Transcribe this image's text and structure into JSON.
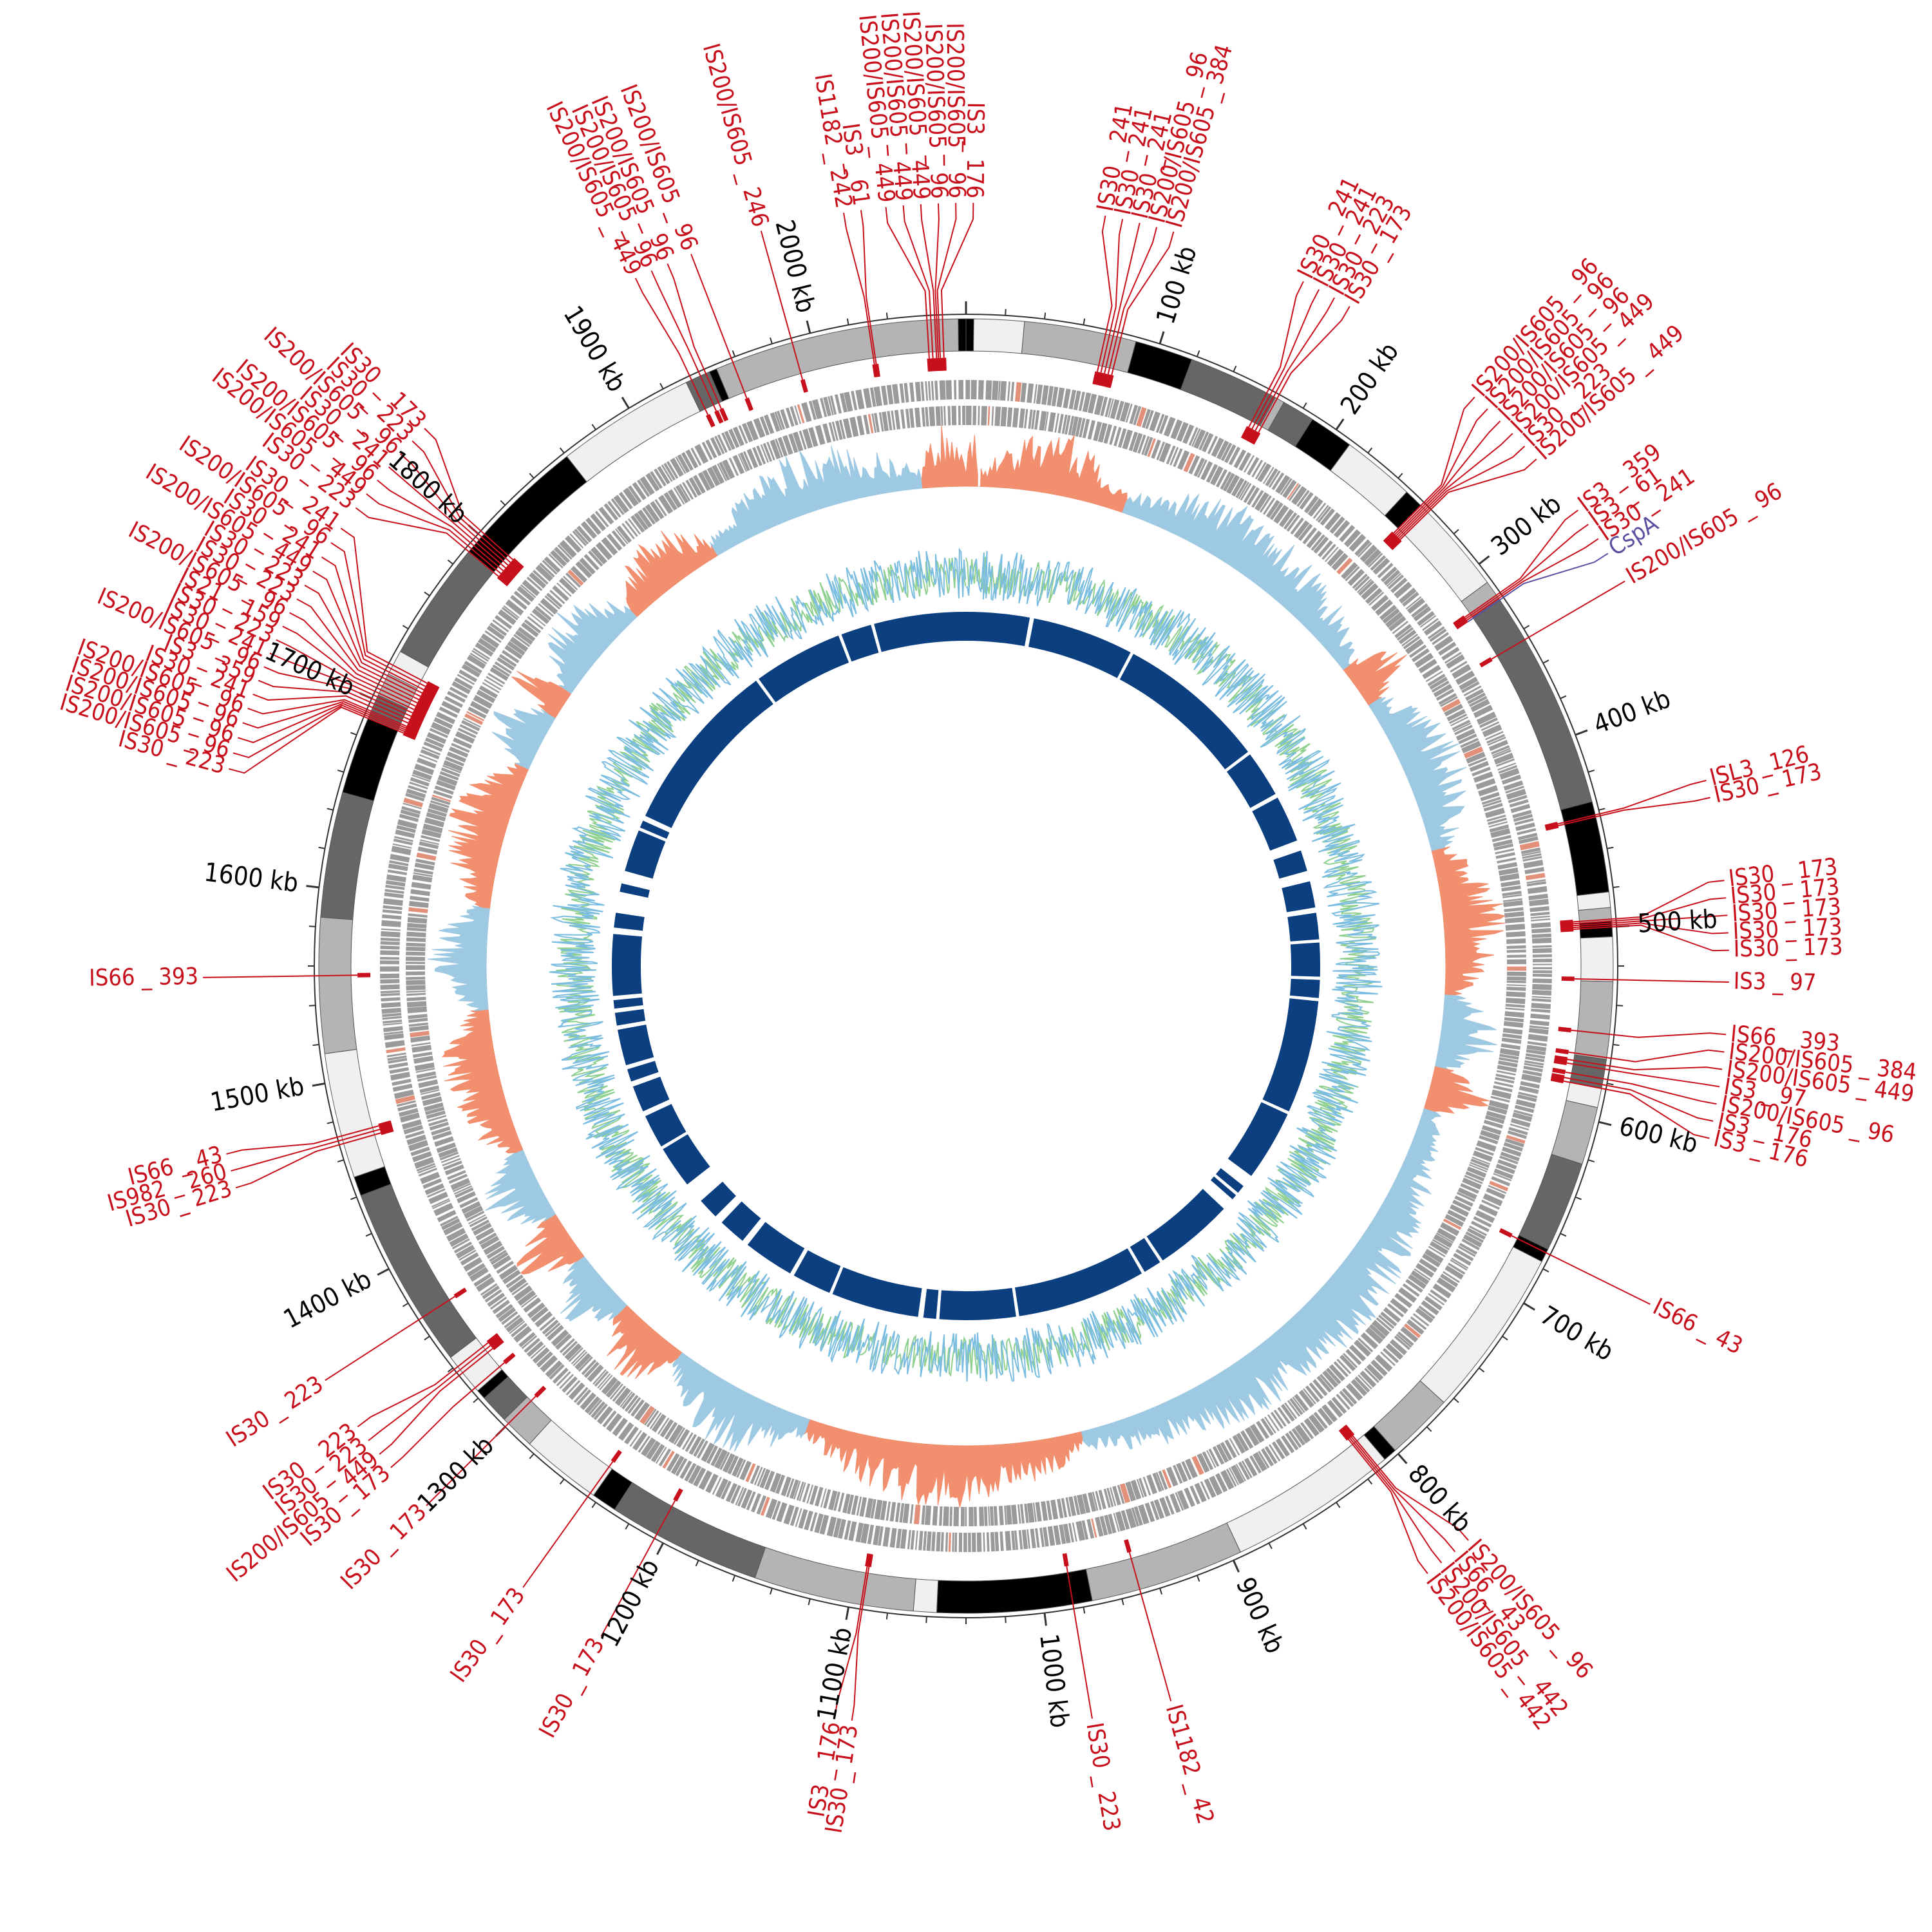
{
  "genome_length_kb": 2080,
  "colors": {
    "is_element": "#c8101c",
    "gene_highlight": "#5a4fa0",
    "gc_skew_positive": "#9ec9e3",
    "gc_skew_negative": "#f28f6f",
    "gc_content_a": "#7bbde0",
    "gc_content_b": "#8fd08f",
    "inner_blocks": "#0b3f7f",
    "cds_track": "#9a9a9a",
    "contig_palette": [
      "#000000",
      "#666666",
      "#b4b4b4",
      "#f0f0f0"
    ]
  },
  "scale_ticks": [
    {
      "kb": 0,
      "label": ""
    },
    {
      "kb": 100,
      "label": "100 kb"
    },
    {
      "kb": 200,
      "label": "200 kb"
    },
    {
      "kb": 300,
      "label": "300 kb"
    },
    {
      "kb": 400,
      "label": "400 kb"
    },
    {
      "kb": 500,
      "label": "500 kb"
    },
    {
      "kb": 600,
      "label": "600 kb"
    },
    {
      "kb": 700,
      "label": "700 kb"
    },
    {
      "kb": 800,
      "label": "800 kb"
    },
    {
      "kb": 900,
      "label": "900 kb"
    },
    {
      "kb": 1000,
      "label": "1000 kb"
    },
    {
      "kb": 1100,
      "label": "1100 kb"
    },
    {
      "kb": 1200,
      "label": "1200 kb"
    },
    {
      "kb": 1300,
      "label": "1300 kb"
    },
    {
      "kb": 1400,
      "label": "1400 kb"
    },
    {
      "kb": 1500,
      "label": "1500 kb"
    },
    {
      "kb": 1600,
      "label": "1600 kb"
    },
    {
      "kb": 1700,
      "label": "1700 kb"
    },
    {
      "kb": 1800,
      "label": "1800 kb"
    },
    {
      "kb": 1900,
      "label": "1900 kb"
    },
    {
      "kb": 2000,
      "label": "2000 kb"
    }
  ],
  "contigs": [
    {
      "start": 0,
      "end": 4,
      "shade": 0
    },
    {
      "start": 4,
      "end": 30,
      "shade": 3
    },
    {
      "start": 30,
      "end": 88,
      "shade": 2
    },
    {
      "start": 88,
      "end": 118,
      "shade": 0
    },
    {
      "start": 118,
      "end": 165,
      "shade": 1
    },
    {
      "start": 165,
      "end": 170,
      "shade": 2
    },
    {
      "start": 170,
      "end": 187,
      "shade": 1
    },
    {
      "start": 187,
      "end": 210,
      "shade": 0
    },
    {
      "start": 210,
      "end": 248,
      "shade": 3
    },
    {
      "start": 248,
      "end": 258,
      "shade": 0
    },
    {
      "start": 258,
      "end": 310,
      "shade": 3
    },
    {
      "start": 310,
      "end": 320,
      "shade": 2
    },
    {
      "start": 320,
      "end": 435,
      "shade": 1
    },
    {
      "start": 435,
      "end": 482,
      "shade": 0
    },
    {
      "start": 482,
      "end": 490,
      "shade": 3
    },
    {
      "start": 490,
      "end": 497,
      "shade": 2
    },
    {
      "start": 497,
      "end": 505,
      "shade": 0
    },
    {
      "start": 505,
      "end": 528,
      "shade": 3
    },
    {
      "start": 528,
      "end": 568,
      "shade": 2
    },
    {
      "start": 568,
      "end": 583,
      "shade": 1
    },
    {
      "start": 583,
      "end": 593,
      "shade": 3
    },
    {
      "start": 593,
      "end": 623,
      "shade": 2
    },
    {
      "start": 623,
      "end": 670,
      "shade": 1
    },
    {
      "start": 670,
      "end": 677,
      "shade": 0
    },
    {
      "start": 677,
      "end": 765,
      "shade": 3
    },
    {
      "start": 765,
      "end": 800,
      "shade": 2
    },
    {
      "start": 800,
      "end": 807,
      "shade": 0
    },
    {
      "start": 807,
      "end": 895,
      "shade": 3
    },
    {
      "start": 895,
      "end": 975,
      "shade": 2
    },
    {
      "start": 975,
      "end": 1055,
      "shade": 0
    },
    {
      "start": 1055,
      "end": 1067,
      "shade": 3
    },
    {
      "start": 1067,
      "end": 1150,
      "shade": 2
    },
    {
      "start": 1150,
      "end": 1230,
      "shade": 1
    },
    {
      "start": 1230,
      "end": 1243,
      "shade": 0
    },
    {
      "start": 1243,
      "end": 1285,
      "shade": 3
    },
    {
      "start": 1285,
      "end": 1303,
      "shade": 2
    },
    {
      "start": 1303,
      "end": 1318,
      "shade": 1
    },
    {
      "start": 1318,
      "end": 1323,
      "shade": 0
    },
    {
      "start": 1323,
      "end": 1345,
      "shade": 3
    },
    {
      "start": 1345,
      "end": 1440,
      "shade": 1
    },
    {
      "start": 1440,
      "end": 1450,
      "shade": 0
    },
    {
      "start": 1450,
      "end": 1515,
      "shade": 3
    },
    {
      "start": 1515,
      "end": 1585,
      "shade": 2
    },
    {
      "start": 1585,
      "end": 1650,
      "shade": 1
    },
    {
      "start": 1650,
      "end": 1690,
      "shade": 0
    },
    {
      "start": 1690,
      "end": 1703,
      "shade": 1
    },
    {
      "start": 1703,
      "end": 1715,
      "shade": 2
    },
    {
      "start": 1715,
      "end": 1728,
      "shade": 3
    },
    {
      "start": 1728,
      "end": 1790,
      "shade": 1
    },
    {
      "start": 1790,
      "end": 1860,
      "shade": 0
    },
    {
      "start": 1860,
      "end": 1932,
      "shade": 3
    },
    {
      "start": 1932,
      "end": 1945,
      "shade": 1
    },
    {
      "start": 1945,
      "end": 1949,
      "shade": 0
    },
    {
      "start": 1949,
      "end": 2076,
      "shade": 2
    },
    {
      "start": 2076,
      "end": 2080,
      "shade": 0
    }
  ],
  "inner_blocks": [
    {
      "start": 0,
      "end": 60
    },
    {
      "start": 64,
      "end": 160
    },
    {
      "start": 163,
      "end": 305
    },
    {
      "start": 308,
      "end": 352
    },
    {
      "start": 356,
      "end": 400
    },
    {
      "start": 410,
      "end": 430
    },
    {
      "start": 440,
      "end": 465
    },
    {
      "start": 470,
      "end": 495
    },
    {
      "start": 498,
      "end": 530
    },
    {
      "start": 533,
      "end": 550
    },
    {
      "start": 553,
      "end": 660
    },
    {
      "start": 663,
      "end": 730
    },
    {
      "start": 742,
      "end": 750
    },
    {
      "start": 753,
      "end": 758
    },
    {
      "start": 770,
      "end": 845
    },
    {
      "start": 848,
      "end": 865
    },
    {
      "start": 868,
      "end": 990
    },
    {
      "start": 993,
      "end": 1065
    },
    {
      "start": 1068,
      "end": 1080
    },
    {
      "start": 1085,
      "end": 1168
    },
    {
      "start": 1171,
      "end": 1208
    },
    {
      "start": 1212,
      "end": 1260
    },
    {
      "start": 1266,
      "end": 1292
    },
    {
      "start": 1300,
      "end": 1320
    },
    {
      "start": 1340,
      "end": 1380
    },
    {
      "start": 1383,
      "end": 1415
    },
    {
      "start": 1420,
      "end": 1445
    },
    {
      "start": 1450,
      "end": 1462
    },
    {
      "start": 1466,
      "end": 1500
    },
    {
      "start": 1504,
      "end": 1516
    },
    {
      "start": 1520,
      "end": 1528
    },
    {
      "start": 1532,
      "end": 1590
    },
    {
      "start": 1596,
      "end": 1610
    },
    {
      "start": 1630,
      "end": 1638
    },
    {
      "start": 1650,
      "end": 1690
    },
    {
      "start": 1693,
      "end": 1700
    },
    {
      "start": 1705,
      "end": 1870
    },
    {
      "start": 1873,
      "end": 1958
    },
    {
      "start": 1961,
      "end": 1990
    },
    {
      "start": 1993,
      "end": 2080
    }
  ],
  "skew_segments": [
    {
      "start": 0,
      "end": 8,
      "sign": "neg"
    },
    {
      "start": 10,
      "end": 110,
      "sign": "neg"
    },
    {
      "start": 110,
      "end": 300,
      "sign": "pos"
    },
    {
      "start": 300,
      "end": 330,
      "sign": "neg"
    },
    {
      "start": 330,
      "end": 440,
      "sign": "pos"
    },
    {
      "start": 440,
      "end": 540,
      "sign": "neg"
    },
    {
      "start": 540,
      "end": 590,
      "sign": "pos"
    },
    {
      "start": 590,
      "end": 620,
      "sign": "neg"
    },
    {
      "start": 620,
      "end": 960,
      "sign": "pos"
    },
    {
      "start": 960,
      "end": 1150,
      "sign": "neg"
    },
    {
      "start": 1150,
      "end": 1250,
      "sign": "pos"
    },
    {
      "start": 1250,
      "end": 1300,
      "sign": "neg"
    },
    {
      "start": 1300,
      "end": 1345,
      "sign": "pos"
    },
    {
      "start": 1345,
      "end": 1380,
      "sign": "neg"
    },
    {
      "start": 1380,
      "end": 1430,
      "sign": "pos"
    },
    {
      "start": 1430,
      "end": 1530,
      "sign": "neg"
    },
    {
      "start": 1530,
      "end": 1600,
      "sign": "pos"
    },
    {
      "start": 1600,
      "end": 1700,
      "sign": "neg"
    },
    {
      "start": 1700,
      "end": 1740,
      "sign": "pos"
    },
    {
      "start": 1740,
      "end": 1760,
      "sign": "neg"
    },
    {
      "start": 1760,
      "end": 1830,
      "sign": "pos"
    },
    {
      "start": 1830,
      "end": 1900,
      "sign": "neg"
    },
    {
      "start": 1900,
      "end": 2050,
      "sign": "pos"
    },
    {
      "start": 2050,
      "end": 2080,
      "sign": "neg"
    }
  ],
  "annotations": [
    {
      "text": "IS30 _ 241",
      "pos": 160,
      "side": "right"
    },
    {
      "text": "IS30 _ 241",
      "pos": 162,
      "side": "right"
    },
    {
      "text": "IS30 _ 223",
      "pos": 164,
      "side": "right"
    },
    {
      "text": "IS30 _ 173",
      "pos": 166,
      "side": "right"
    },
    {
      "text": "IS200/IS605 _ 96",
      "pos": 258,
      "side": "right"
    },
    {
      "text": "IS200/IS605 _ 96",
      "pos": 259,
      "side": "right"
    },
    {
      "text": "IS200/IS605 _ 96",
      "pos": 260,
      "side": "right"
    },
    {
      "text": "IS200/IS605 _ 449",
      "pos": 261,
      "side": "right"
    },
    {
      "text": "IS30 _ 223",
      "pos": 262,
      "side": "right"
    },
    {
      "text": "IS200/IS605 _ 449",
      "pos": 263,
      "side": "right"
    },
    {
      "text": "IS3 _ 359",
      "pos": 318,
      "side": "right"
    },
    {
      "text": "IS3 _ 61",
      "pos": 319,
      "side": "right"
    },
    {
      "text": "IS30 _ 241",
      "pos": 320,
      "side": "right"
    },
    {
      "text": "CspA",
      "pos": 321,
      "side": "right",
      "kind": "gene"
    },
    {
      "text": "IS200/IS605 _ 96",
      "pos": 345,
      "side": "right"
    },
    {
      "text": "ISL3 _126",
      "pos": 442,
      "side": "right"
    },
    {
      "text": "IS30 _ 173",
      "pos": 443,
      "side": "right"
    },
    {
      "text": "IS30 _ 173",
      "pos": 496,
      "side": "right"
    },
    {
      "text": "IS30 _ 173",
      "pos": 497,
      "side": "right"
    },
    {
      "text": "IS30 _ 173",
      "pos": 498,
      "side": "right"
    },
    {
      "text": "IS30 _ 173",
      "pos": 499,
      "side": "right"
    },
    {
      "text": "IS30 _ 173",
      "pos": 500,
      "side": "right"
    },
    {
      "text": "IS3 _ 97",
      "pos": 527,
      "side": "right"
    },
    {
      "text": "IS66 _ 393",
      "pos": 555,
      "side": "right"
    },
    {
      "text": "IS200/IS605 _ 384",
      "pos": 567,
      "side": "right"
    },
    {
      "text": "IS200/IS605 _ 449",
      "pos": 571,
      "side": "right"
    },
    {
      "text": "IS3 _ 97",
      "pos": 573,
      "side": "right"
    },
    {
      "text": "IS200/IS605 _ 96",
      "pos": 578,
      "side": "right"
    },
    {
      "text": "IS3 _ 176",
      "pos": 581,
      "side": "right"
    },
    {
      "text": "IS3 _ 176",
      "pos": 583,
      "side": "right"
    },
    {
      "text": "IS66 _ 43",
      "pos": 672,
      "side": "right"
    },
    {
      "text": "IS200/IS605 _ 96",
      "pos": 812,
      "side": "right"
    },
    {
      "text": "IS66 _ 43",
      "pos": 813,
      "side": "right"
    },
    {
      "text": "IS200/IS605 _ 442",
      "pos": 814,
      "side": "right"
    },
    {
      "text": "IS200/IS605 _ 442",
      "pos": 815,
      "side": "right"
    },
    {
      "text": "IS1182 _ 42",
      "pos": 950,
      "side": "right"
    },
    {
      "text": "IS30 _ 223",
      "pos": 985,
      "side": "right"
    },
    {
      "text": "IS30 _ 173",
      "pos": 1093,
      "side": "left"
    },
    {
      "text": "IS3 _ 176",
      "pos": 1094,
      "side": "left"
    },
    {
      "text": "IS30 _ 173",
      "pos": 1205,
      "side": "left"
    },
    {
      "text": "IS30 _ 173",
      "pos": 1245,
      "side": "left"
    },
    {
      "text": "IS30 _ 173",
      "pos": 1300,
      "side": "left"
    },
    {
      "text": "IS30 _ 173",
      "pos": 1325,
      "side": "left"
    },
    {
      "text": "IS200/IS605 _ 449",
      "pos": 1335,
      "side": "left"
    },
    {
      "text": "IS30 _ 223",
      "pos": 1337,
      "side": "left"
    },
    {
      "text": "IS30 _ 223",
      "pos": 1339,
      "side": "left"
    },
    {
      "text": "IS30 _ 223",
      "pos": 1370,
      "side": "left"
    },
    {
      "text": "IS30 _ 223",
      "pos": 1468,
      "side": "left"
    },
    {
      "text": "IS982 _ 260",
      "pos": 1470,
      "side": "left"
    },
    {
      "text": "IS66 _ 43",
      "pos": 1472,
      "side": "left"
    },
    {
      "text": "IS66 _ 393",
      "pos": 1555,
      "side": "left"
    },
    {
      "text": "IS30 _ 223",
      "pos": 1690,
      "side": "left"
    },
    {
      "text": "IS200/IS605 _ 96",
      "pos": 1691,
      "side": "left"
    },
    {
      "text": "IS200/IS605 _ 96",
      "pos": 1692,
      "side": "left"
    },
    {
      "text": "IS200/IS605 _ 96",
      "pos": 1693,
      "side": "left"
    },
    {
      "text": "IS200/IS605 _ 96",
      "pos": 1694,
      "side": "left"
    },
    {
      "text": "IS30 _ 241",
      "pos": 1696,
      "side": "left"
    },
    {
      "text": "IS3 _ 359",
      "pos": 1698,
      "side": "left"
    },
    {
      "text": "IS200/IS605 _ 96",
      "pos": 1700,
      "side": "left"
    },
    {
      "text": "IS30 _ 241",
      "pos": 1702,
      "side": "left"
    },
    {
      "text": "IS30 _ 223",
      "pos": 1704,
      "side": "left"
    },
    {
      "text": "IS21 _ 159",
      "pos": 1706,
      "side": "left"
    },
    {
      "text": "IS200/IS605 _ 96",
      "pos": 1708,
      "side": "left"
    },
    {
      "text": "IS30 _ 223",
      "pos": 1710,
      "side": "left"
    },
    {
      "text": "IS30 _ 223",
      "pos": 1712,
      "side": "left"
    },
    {
      "text": "IS200/IS605 _ 449",
      "pos": 1714,
      "side": "left"
    },
    {
      "text": "IS30 _ 241",
      "pos": 1716,
      "side": "left"
    },
    {
      "text": "IS200/IS605 _ 96",
      "pos": 1718,
      "side": "left"
    },
    {
      "text": "IS30 _ 241",
      "pos": 1720,
      "side": "left"
    },
    {
      "text": "IS30 _ 223",
      "pos": 1790,
      "side": "left"
    },
    {
      "text": "IS200/IS605 _ 449",
      "pos": 1792,
      "side": "left"
    },
    {
      "text": "IS200/IS605 _ 96",
      "pos": 1794,
      "side": "left"
    },
    {
      "text": "IS30 _ 241",
      "pos": 1796,
      "side": "left"
    },
    {
      "text": "IS200/IS605 _ 96",
      "pos": 1798,
      "side": "left"
    },
    {
      "text": "IS30 _ 223",
      "pos": 1800,
      "side": "left"
    },
    {
      "text": "IS30 _ 173",
      "pos": 1802,
      "side": "left"
    },
    {
      "text": "IS200/IS605 _ 449",
      "pos": 1935,
      "side": "left"
    },
    {
      "text": "IS200/IS605 _ 96",
      "pos": 1940,
      "side": "left"
    },
    {
      "text": "IS200/IS605 _ 96",
      "pos": 1943,
      "side": "left"
    },
    {
      "text": "IS200/IS605 _ 96",
      "pos": 1958,
      "side": "left"
    },
    {
      "text": "IS200/IS605 _ 246",
      "pos": 1990,
      "side": "left"
    },
    {
      "text": "IS1182 _ 242",
      "pos": 2030,
      "side": "left"
    },
    {
      "text": "IS3 _ 61",
      "pos": 2031,
      "side": "left"
    },
    {
      "text": "IS200/IS605 _ 449",
      "pos": 2060,
      "side": "left"
    },
    {
      "text": "IS200/IS605 _ 449",
      "pos": 2062,
      "side": "left"
    },
    {
      "text": "IS200/IS605 _ 449",
      "pos": 2064,
      "side": "left"
    },
    {
      "text": "IS200/IS605 _ 96",
      "pos": 2065,
      "side": "left"
    },
    {
      "text": "IS200/IS605 _ 96",
      "pos": 2066,
      "side": "left"
    },
    {
      "text": "IS3 _ 176",
      "pos": 2068,
      "side": "left"
    },
    {
      "text": "IS200/IS605 _ 384",
      "pos": 80,
      "side": "right"
    },
    {
      "text": "IS200/IS605 _ 96",
      "pos": 78,
      "side": "right"
    },
    {
      "text": "IS30 _ 241",
      "pos": 76,
      "side": "right"
    },
    {
      "text": "IS30 _ 241",
      "pos": 74,
      "side": "right"
    },
    {
      "text": "IS30 _ 241",
      "pos": 72,
      "side": "right"
    }
  ]
}
